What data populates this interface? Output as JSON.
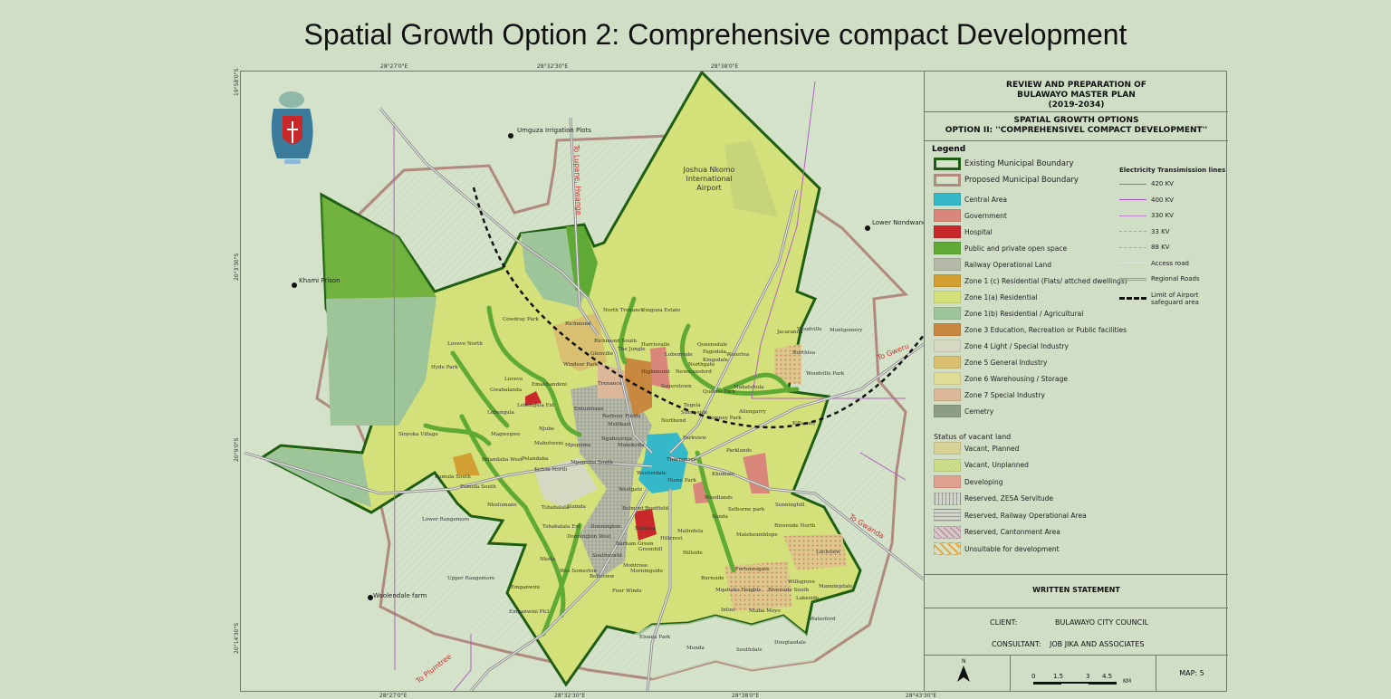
{
  "page_title": "Spatial Growth Option 2: Comprehensive compact Development",
  "coords": {
    "top": [
      "28°27'0\"E",
      "28°32'30\"E",
      "28°38'0\"E"
    ],
    "bottom": [
      "28°27'0\"E",
      "28°32'30\"E",
      "28°38'0\"E",
      "28°43'30\"E"
    ],
    "left": [
      "19°58'0\"S",
      "20°3'30\"S",
      "20°9'0\"S",
      "20°14'30\"S"
    ]
  },
  "panel": {
    "project_lines": [
      "REVIEW AND PREPARATION OF",
      "BULAWAYO MASTER PLAN",
      "(2019-2034)"
    ],
    "option_lines": [
      "SPATIAL GROWTH OPTIONS",
      "OPTION II: ''COMPREHENSIVEL COMPACT DEVELOPMENT''"
    ],
    "legend_title": "Legend",
    "boundaries": [
      {
        "label": "Existing Municipal Boundary",
        "color": "#1d5e12"
      },
      {
        "label": "Proposed Municipal Boundary",
        "color": "#b08a7e"
      }
    ],
    "land_use": [
      {
        "label": "Central Area",
        "color": "#35b8c8"
      },
      {
        "label": "Government",
        "color": "#d8877a"
      },
      {
        "label": "Hospital",
        "color": "#c8282a"
      },
      {
        "label": "Public and private open space",
        "color": "#5faa34"
      },
      {
        "label": "Railway Operational Land",
        "color": "#b5b9a8"
      },
      {
        "label": "Zone 1 (c) Residential (Flats/ attched dwellings)",
        "color": "#d2a032"
      },
      {
        "label": "Zone 1(a) Residential",
        "color": "#d4e07a"
      },
      {
        "label": "Zone 1(b) Residential / Agricultural",
        "color": "#9ec59a"
      },
      {
        "label": "Zone 3 Education, Recreation or Public facilities",
        "color": "#c88840"
      },
      {
        "label": "Zone 4 Light / Special Industry",
        "color": "#d5d9c2"
      },
      {
        "label": "Zone 5 General Industry",
        "color": "#d8c070"
      },
      {
        "label": "Zone 6 Warehousing / Storage",
        "color": "#e0dc98"
      },
      {
        "label": "Zone 7 Special Industry",
        "color": "#dcb898"
      },
      {
        "label": "Cemetry",
        "color": "#8d9c84"
      }
    ],
    "vacant_title": "Status of vacant land",
    "vacant": [
      {
        "label": "Vacant, Planned",
        "color": "#dcd69a"
      },
      {
        "label": "Vacant, Unplanned",
        "color": "#cfe08a"
      },
      {
        "label": "Developing",
        "color": "#e0a090"
      },
      {
        "label": "Reserved, ZESA Servitude",
        "color": "#d0d8c4"
      },
      {
        "label": "Reserved, Railway Operational Area",
        "color": "#d0d8c4"
      },
      {
        "label": "Reserved, Cantonment Area",
        "color": "#d6c8c8"
      },
      {
        "label": "Unsuitable for development",
        "color": "#e8a840"
      }
    ],
    "electricity_title": "Electricity Transimission lines",
    "lines": [
      {
        "label": "420 KV",
        "color": "#b060c0",
        "style": "solid"
      },
      {
        "label": "400 KV",
        "color": "#a050c0",
        "style": "solid"
      },
      {
        "label": "330 KV",
        "color": "#c080d0",
        "style": "solid"
      },
      {
        "label": "33 KV",
        "color": "#8fb0a0",
        "style": "dashed"
      },
      {
        "label": "88 KV",
        "color": "#c090c0",
        "style": "dashed"
      },
      {
        "label": "Access road",
        "color": "#e0e6dc",
        "style": "solid"
      },
      {
        "label": "Regional Roads",
        "color": "#9a9a9a",
        "style": "double"
      },
      {
        "label": "Limit of Airport safeguard area",
        "color": "#111111",
        "style": "dashed-bold"
      }
    ],
    "written_statement": "WRITTEN STATEMENT",
    "client_label": "CLIENT:",
    "client_value": "BULAWAYO CITY COUNCIL",
    "consultant_label": "CONSULTANT:",
    "consultant_value": "JOB JIKA AND ASSOCIATES",
    "north_label": "N",
    "scale_ticks": [
      "0",
      "1.5",
      "3",
      "4.5"
    ],
    "scale_unit": "KM",
    "map_number": "MAP: 5"
  },
  "map": {
    "points": [
      "Umguza Irrigation Plots",
      "Khami Prison",
      "Lower Nondwane",
      "Woolendale farm"
    ],
    "airport": [
      "Joshua Nkomo",
      "International",
      "Airport"
    ],
    "road_labels": [
      "To Lupane, Hwange",
      "To Gweru",
      "To Gwanda",
      "To Plumtree"
    ],
    "places": [
      "Cowdray Park",
      "Richmond",
      "North Trenance",
      "Umguza Estate",
      "Luveve North",
      "Hyde Park",
      "Richmond South",
      "The Jungle",
      "Harrisvalle",
      "Glenville",
      "Queensdale",
      "Fagodola",
      "Kingsdale",
      "Lobemvale",
      "Waterlea",
      "Jacaranda",
      "Woodville",
      "Northlea",
      "Montgomery",
      "Windsor Park",
      "Highmount",
      "Northgate",
      "Newmansford",
      "Luveve",
      "Gwabalanda",
      "Emakhandeni",
      "Trenance",
      "Sauerstown",
      "Queens Park",
      "Mahatshula",
      "Woodville Park",
      "Lobengula Ext",
      "Lobengula",
      "Entumbane",
      "Barbour Fields",
      "Mzilikazi",
      "Tegela",
      "Sunnyside",
      "Romney Park",
      "Allengarry",
      "Killarney",
      "Northend",
      "Njube",
      "Sinyoka Village",
      "Magwegwe",
      "Ngaboyenja",
      "Mabutweni",
      "Mpopoma",
      "Makokoba",
      "Parkview",
      "Pelandaba West",
      "Pelandaba",
      "Mpopoma South",
      "Kelvin North",
      "Thorngrove",
      "Parklands",
      "Pumula South",
      "Pumula South",
      "Westondale",
      "Hume Park",
      "Khumalo",
      "Nkulumane",
      "Tshabalala",
      "Sizinda",
      "Westgate",
      "Belmont",
      "Bradfield",
      "Woodlands",
      "Sunninghill",
      "Lower Rangemore",
      "Tshabalala Ext",
      "Donnington",
      "Donnington West",
      "Barham Green",
      "Famona",
      "Selborne park",
      "Ilanda",
      "Riverside North",
      "Malindela",
      "Hillcrest",
      "Greenhill",
      "Matsheumhlope",
      "Hillside",
      "Southworld",
      "Montrose",
      "Nketa",
      "Lochview",
      "Morningside",
      "Wes Somerton",
      "Belleview",
      "Fortunesgate",
      "Burnside",
      "Mqabuko Heights",
      "Riverside South",
      "Willsgrove",
      "Manningdale",
      "Upper Rangemore",
      "Emganwini",
      "Four Winds",
      "Lakeside",
      "Emganwini Ph3",
      "Intini",
      "Ntaba Moyo",
      "Waterford",
      "Eloana Park",
      "Douglasdale",
      "Munda",
      "Southdale"
    ]
  }
}
